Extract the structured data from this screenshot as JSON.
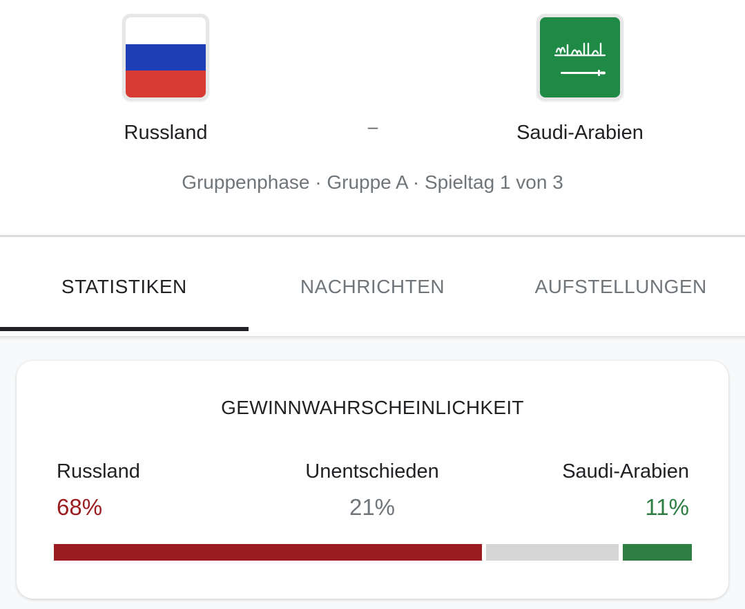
{
  "match": {
    "home_team": {
      "name": "Russland",
      "flag_colors": [
        "#ffffff",
        "#1f3fb6",
        "#d83a34"
      ]
    },
    "away_team": {
      "name": "Saudi-Arabien",
      "flag_color": "#1f8a45"
    },
    "score_separator": "–",
    "info": "Gruppenphase · Gruppe A · Spieltag 1 von 3"
  },
  "tabs": [
    {
      "label": "STATISTIKEN",
      "active": true
    },
    {
      "label": "NACHRICHTEN",
      "active": false
    },
    {
      "label": "AUFSTELLUNGEN",
      "active": false
    }
  ],
  "win_probability": {
    "title": "GEWINNWAHRSCHEINLICHKEIT",
    "outcomes": [
      {
        "label": "Russland",
        "value": "68%",
        "percent": 68,
        "color": "#9b1c1f"
      },
      {
        "label": "Unentschieden",
        "value": "21%",
        "percent": 21,
        "color": "#70757a",
        "bar_color": "#d6d6d6"
      },
      {
        "label": "Saudi-Arabien",
        "value": "11%",
        "percent": 11,
        "color": "#2e7d42"
      }
    ]
  }
}
